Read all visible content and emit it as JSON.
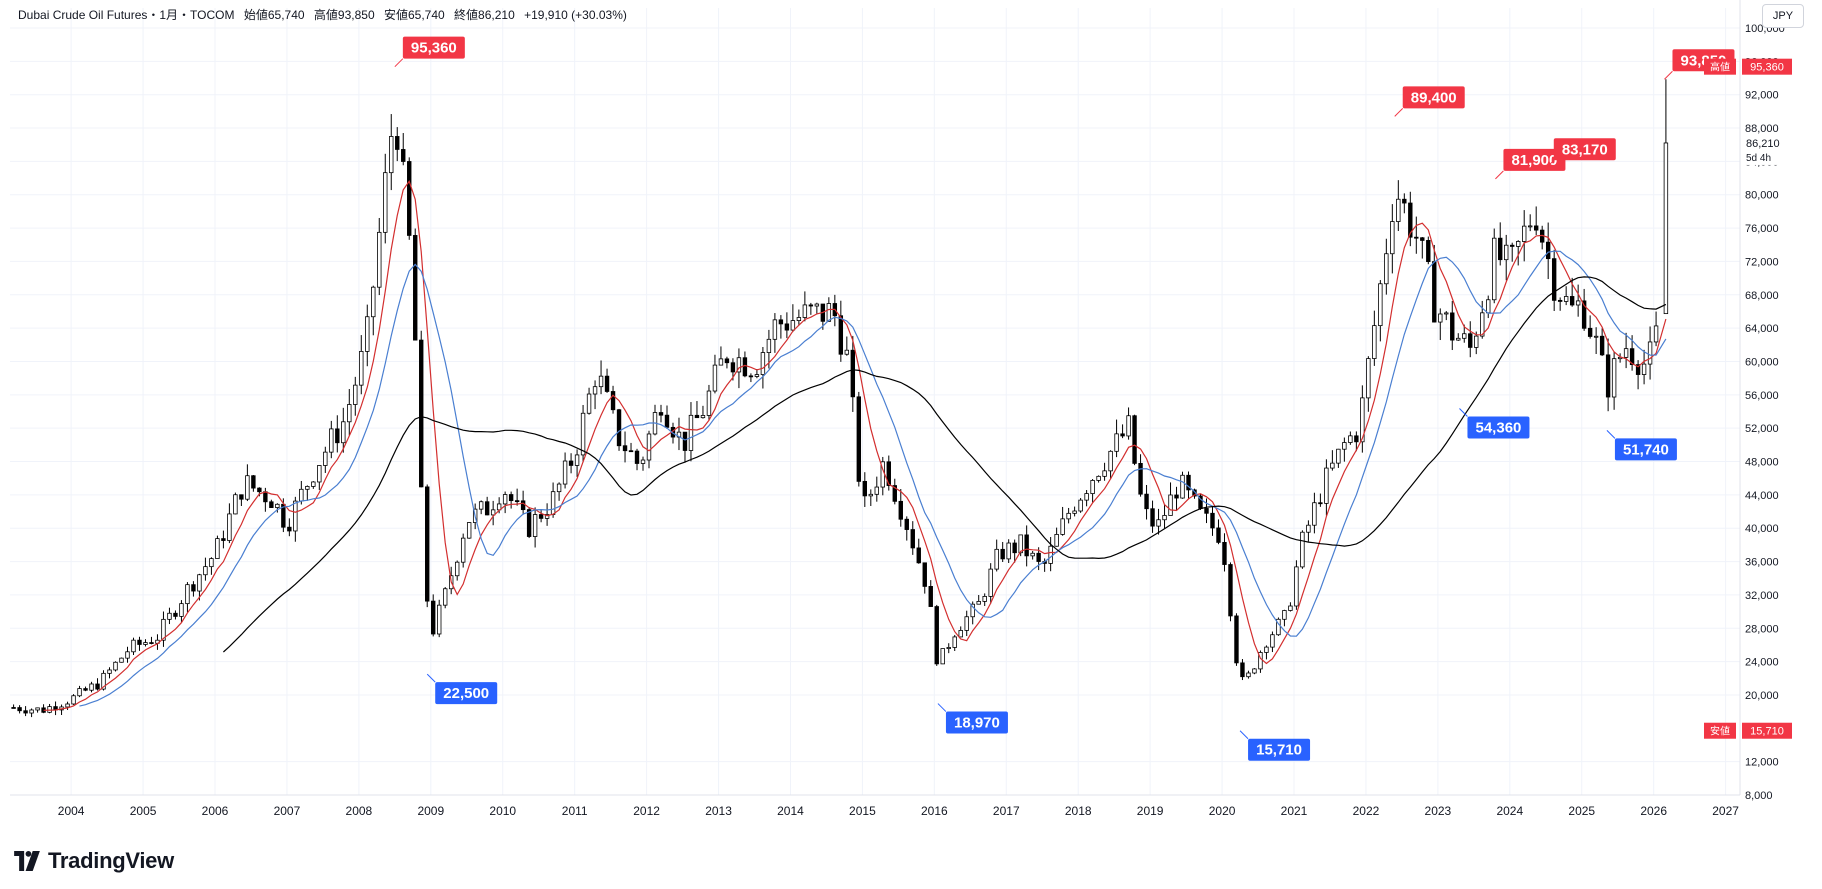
{
  "header": {
    "symbol": "Dubai Crude Oil Futures・1月・TOCOM",
    "open": "始値65,740",
    "high": "高値93,850",
    "low": "安値65,740",
    "close": "終値86,210",
    "change": "+19,910 (+30.03%)"
  },
  "currency_button": "JPY",
  "brand": "TradingView",
  "colors": {
    "up": "#ffffff",
    "down": "#000000",
    "ma_short": "#d32f2f",
    "ma_mid": "#4a7fd1",
    "ma_long": "#000000",
    "label_high": "#f23645",
    "label_low": "#2962ff"
  },
  "chart_data": {
    "type": "candlestick",
    "xlabel": "",
    "ylabel": "",
    "ylim": [
      8000,
      100000
    ],
    "y_ticks": [
      "100,000",
      "96,000",
      "92,000",
      "88,000",
      "84,000",
      "80,000",
      "76,000",
      "72,000",
      "68,000",
      "64,000",
      "60,000",
      "56,000",
      "52,000",
      "48,000",
      "44,000",
      "40,000",
      "36,000",
      "32,000",
      "28,000",
      "24,000",
      "20,000",
      "12,000",
      "8,000"
    ],
    "x_ticks": [
      "2004",
      "2005",
      "2006",
      "2007",
      "2008",
      "2009",
      "2010",
      "2011",
      "2012",
      "2013",
      "2014",
      "2015",
      "2016",
      "2017",
      "2018",
      "2019",
      "2020",
      "2021",
      "2022",
      "2023",
      "2024",
      "2025",
      "2026",
      "2027"
    ],
    "x_range": [
      2003.15,
      2027.2
    ],
    "grid": true,
    "price_readouts": [
      {
        "value": "95,360",
        "tag": "高値"
      },
      {
        "value": "86,210",
        "tag": "5d 4h"
      },
      {
        "value": "15,710",
        "tag": "安値"
      }
    ],
    "annotations": [
      {
        "text": "95,360",
        "kind": "high",
        "x": 2008.5,
        "y": 95360
      },
      {
        "text": "22,500",
        "kind": "low",
        "x": 2008.95,
        "y": 22500
      },
      {
        "text": "18,970",
        "kind": "low",
        "x": 2016.05,
        "y": 18970
      },
      {
        "text": "15,710",
        "kind": "low",
        "x": 2020.25,
        "y": 15710
      },
      {
        "text": "89,400",
        "kind": "high",
        "x": 2022.4,
        "y": 89400
      },
      {
        "text": "54,360",
        "kind": "low",
        "x": 2023.3,
        "y": 54360
      },
      {
        "text": "81,900",
        "kind": "high",
        "x": 2023.8,
        "y": 81900
      },
      {
        "text": "83,170",
        "kind": "high",
        "x": 2024.5,
        "y": 83170
      },
      {
        "text": "51,740",
        "kind": "low",
        "x": 2025.35,
        "y": 51740
      },
      {
        "text": "93,850",
        "kind": "high",
        "x": 2026.15,
        "y": 93850
      }
    ],
    "anchors": [
      [
        2003.2,
        18500
      ],
      [
        2003.6,
        18200
      ],
      [
        2004.0,
        19500
      ],
      [
        2004.4,
        21500
      ],
      [
        2004.8,
        25500
      ],
      [
        2005.2,
        27000
      ],
      [
        2005.6,
        32500
      ],
      [
        2006.0,
        37000
      ],
      [
        2006.4,
        45500
      ],
      [
        2006.8,
        43500
      ],
      [
        2007.0,
        40500
      ],
      [
        2007.4,
        47500
      ],
      [
        2007.8,
        53000
      ],
      [
        2008.1,
        62000
      ],
      [
        2008.35,
        80000
      ],
      [
        2008.5,
        91000
      ],
      [
        2008.75,
        70000
      ],
      [
        2008.9,
        36000
      ],
      [
        2009.0,
        27000
      ],
      [
        2009.2,
        32000
      ],
      [
        2009.5,
        41000
      ],
      [
        2009.8,
        42500
      ],
      [
        2010.0,
        45000
      ],
      [
        2010.35,
        40000
      ],
      [
        2010.7,
        43500
      ],
      [
        2011.0,
        49000
      ],
      [
        2011.3,
        59000
      ],
      [
        2011.6,
        51000
      ],
      [
        2011.9,
        47500
      ],
      [
        2012.2,
        55500
      ],
      [
        2012.5,
        50000
      ],
      [
        2012.8,
        54500
      ],
      [
        2013.1,
        61000
      ],
      [
        2013.5,
        59500
      ],
      [
        2013.8,
        64500
      ],
      [
        2014.2,
        65500
      ],
      [
        2014.6,
        66000
      ],
      [
        2014.8,
        60000
      ],
      [
        2015.0,
        42000
      ],
      [
        2015.3,
        48000
      ],
      [
        2015.6,
        41000
      ],
      [
        2015.9,
        33000
      ],
      [
        2016.05,
        23500
      ],
      [
        2016.3,
        28000
      ],
      [
        2016.6,
        30500
      ],
      [
        2016.9,
        37000
      ],
      [
        2017.2,
        38000
      ],
      [
        2017.5,
        35000
      ],
      [
        2017.9,
        42500
      ],
      [
        2018.3,
        47500
      ],
      [
        2018.7,
        52000
      ],
      [
        2018.9,
        42000
      ],
      [
        2019.1,
        40000
      ],
      [
        2019.4,
        45500
      ],
      [
        2019.7,
        41500
      ],
      [
        2020.0,
        39000
      ],
      [
        2020.2,
        24500
      ],
      [
        2020.3,
        21000
      ],
      [
        2020.6,
        26500
      ],
      [
        2020.9,
        29500
      ],
      [
        2021.1,
        38000
      ],
      [
        2021.4,
        45000
      ],
      [
        2021.7,
        50000
      ],
      [
        2021.9,
        52000
      ],
      [
        2022.2,
        69000
      ],
      [
        2022.4,
        81000
      ],
      [
        2022.7,
        75000
      ],
      [
        2022.95,
        67000
      ],
      [
        2023.2,
        63500
      ],
      [
        2023.45,
        61500
      ],
      [
        2023.8,
        73000
      ],
      [
        2024.0,
        71000
      ],
      [
        2024.35,
        78500
      ],
      [
        2024.6,
        70000
      ],
      [
        2024.85,
        66000
      ],
      [
        2025.0,
        67000
      ],
      [
        2025.2,
        62000
      ],
      [
        2025.35,
        57000
      ],
      [
        2025.6,
        62000
      ],
      [
        2025.9,
        59500
      ],
      [
        2026.0,
        61500
      ],
      [
        2026.1,
        65740
      ]
    ],
    "last_candle": {
      "x": 2026.17,
      "open": 65740,
      "high": 93850,
      "low": 65740,
      "close": 86210
    }
  }
}
